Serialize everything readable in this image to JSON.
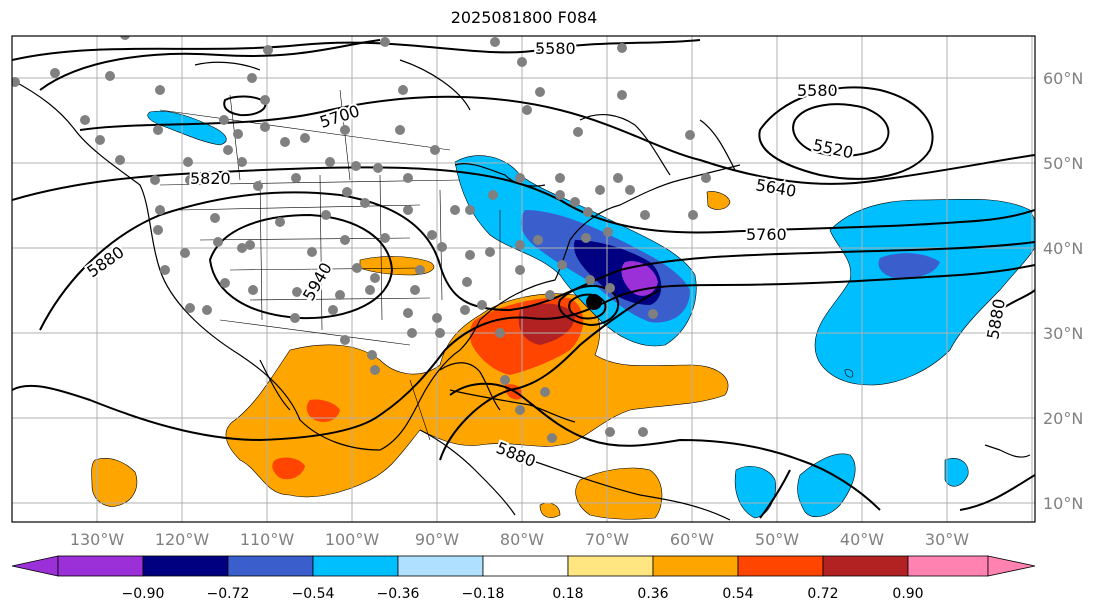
{
  "title": "2025081800 F084",
  "lon_labels": [
    "130°W",
    "120°W",
    "110°W",
    "100°W",
    "90°W",
    "80°W",
    "70°W",
    "60°W",
    "50°W",
    "40°W",
    "30°W"
  ],
  "lat_labels": [
    "60°N",
    "50°N",
    "40°N",
    "30°N",
    "20°N",
    "10°N"
  ],
  "contour_labels": [
    "5580",
    "5700",
    "5820",
    "5880",
    "5940",
    "5580",
    "5520",
    "5640",
    "5760",
    "5880",
    "5880"
  ],
  "colorbar": {
    "tick_labels": [
      "−0.90",
      "−0.72",
      "−0.54",
      "−0.36",
      "−0.18",
      "0.18",
      "0.36",
      "0.54",
      "0.72",
      "0.90"
    ],
    "colors": {
      "neg_extend": "#9b30d9",
      "neg_090_072": "#000080",
      "neg_072_054": "#3a5fcd",
      "neg_054_036": "#00bfff",
      "neg_036_018": "#b0e0ff",
      "neutral": "#ffffff",
      "pos_018_036": "#ffe680",
      "pos_036_054": "#ffa500",
      "pos_054_072": "#ff4500",
      "pos_072_090": "#b22222",
      "pos_extend": "#ff82b0"
    }
  },
  "map_colors": {
    "grid": "#b0b0b0",
    "coast": "#000000",
    "station_dot": "#808080"
  }
}
